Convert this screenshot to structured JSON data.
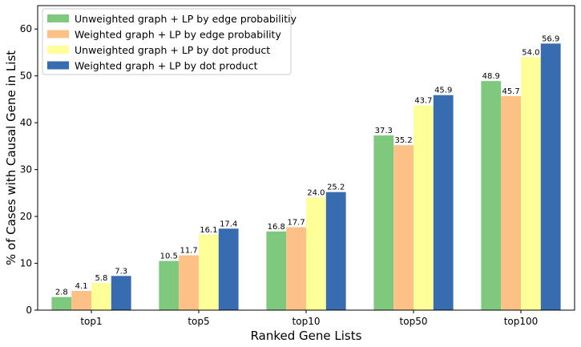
{
  "chart_data": {
    "type": "bar",
    "title": "",
    "xlabel": "Ranked Gene Lists",
    "ylabel": "% of Cases with Causal Gene in List",
    "categories": [
      "top1",
      "top5",
      "top10",
      "top50",
      "top100"
    ],
    "ylim": [
      0,
      65
    ],
    "yticks": [
      0,
      10,
      20,
      30,
      40,
      50,
      60
    ],
    "grid": false,
    "legend_position": "top-left",
    "series": [
      {
        "name": "Unweighted graph + LP by edge probabilitiy",
        "color": "#7fc97f",
        "values": [
          2.8,
          10.5,
          16.8,
          37.3,
          48.9
        ]
      },
      {
        "name": "Weighted graph + LP by edge probability",
        "color": "#fdc086",
        "values": [
          4.1,
          11.7,
          17.7,
          35.2,
          45.7
        ]
      },
      {
        "name": "Unweighted graph + LP by dot product",
        "color": "#ffff99",
        "values": [
          5.8,
          16.1,
          24.0,
          43.7,
          54.0
        ]
      },
      {
        "name": "Weighted graph + LP by dot product",
        "color": "#386cb0",
        "values": [
          7.3,
          17.4,
          25.2,
          45.9,
          56.9
        ]
      }
    ]
  }
}
